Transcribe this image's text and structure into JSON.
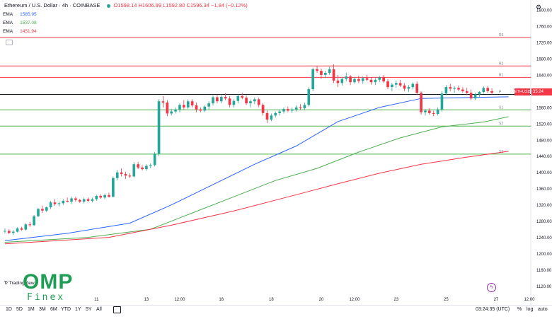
{
  "header": {
    "symbol": "Ethereum / U.S. Dollar · 4h · COINBASE",
    "ohlc": "O1598.14 H1606.99 L1592.80 C1596.34 −1.84 (−0.12%)"
  },
  "ema_legend": [
    {
      "label": "EMA",
      "value": "1585.95",
      "color": "#2962ff"
    },
    {
      "label": "EMA",
      "value": "1537.08",
      "color": "#4caf50"
    },
    {
      "label": "EMA",
      "value": "1451.94",
      "color": "#f23645"
    }
  ],
  "timeframes": [
    "1D",
    "5D",
    "1M",
    "3M",
    "6M",
    "YTD",
    "1Y",
    "5Y",
    "All"
  ],
  "status": {
    "time": "03:24:35 (UTC)",
    "percent": "%",
    "log": "log",
    "auto": "auto"
  },
  "logo": {
    "omp": "OMP",
    "finex": "Finex"
  },
  "tradingview": "TradingView",
  "last_price": {
    "symbol": "ETHUSD",
    "value": "35:24"
  },
  "chart_data": {
    "type": "candlestick",
    "title": "Ethereum / U.S. Dollar · 4h · COINBASE",
    "ylim": [
      1100,
      1800
    ],
    "y_ticks": [
      1800,
      1760,
      1720,
      1680,
      1640,
      1600,
      1560,
      1520,
      1480,
      1440,
      1400,
      1360,
      1320,
      1280,
      1240,
      1200,
      1160,
      1120
    ],
    "x_ticks": [
      {
        "label": "11",
        "bar": 22
      },
      {
        "label": "13",
        "bar": 34
      },
      {
        "label": "12:00",
        "bar": 42
      },
      {
        "label": "16",
        "bar": 52
      },
      {
        "label": "18",
        "bar": 64
      },
      {
        "label": "20",
        "bar": 76
      },
      {
        "label": "12:00",
        "bar": 84
      },
      {
        "label": "23",
        "bar": 94
      },
      {
        "label": "25",
        "bar": 106
      },
      {
        "label": "27",
        "bar": 118
      },
      {
        "label": "12:00",
        "bar": 126
      }
    ],
    "horizontal_levels": [
      {
        "label": "R3",
        "price": 1732,
        "color": "#f23645"
      },
      {
        "label": "R2",
        "price": 1662,
        "color": "#f23645"
      },
      {
        "label": "R1",
        "price": 1634,
        "color": "#f23645"
      },
      {
        "label": "P",
        "price": 1592,
        "color": "#131722"
      },
      {
        "label": "S1",
        "price": 1554,
        "color": "#4caf50"
      },
      {
        "label": "S2",
        "price": 1514,
        "color": "#4caf50"
      },
      {
        "label": "S3",
        "price": 1445,
        "color": "#4caf50"
      }
    ],
    "candles": [
      [
        1255,
        1262,
        1250,
        1256
      ],
      [
        1256,
        1260,
        1248,
        1251
      ],
      [
        1251,
        1258,
        1246,
        1254
      ],
      [
        1254,
        1265,
        1252,
        1262
      ],
      [
        1262,
        1266,
        1256,
        1259
      ],
      [
        1259,
        1275,
        1257,
        1272
      ],
      [
        1272,
        1278,
        1266,
        1270
      ],
      [
        1270,
        1295,
        1268,
        1292
      ],
      [
        1292,
        1312,
        1290,
        1310
      ],
      [
        1310,
        1318,
        1300,
        1306
      ],
      [
        1306,
        1316,
        1302,
        1314
      ],
      [
        1314,
        1330,
        1310,
        1326
      ],
      [
        1326,
        1334,
        1318,
        1322
      ],
      [
        1322,
        1328,
        1316,
        1324
      ],
      [
        1324,
        1334,
        1320,
        1330
      ],
      [
        1330,
        1338,
        1326,
        1328
      ],
      [
        1328,
        1340,
        1322,
        1336
      ],
      [
        1336,
        1340,
        1328,
        1332
      ],
      [
        1332,
        1335,
        1325,
        1328
      ],
      [
        1328,
        1338,
        1324,
        1334
      ],
      [
        1334,
        1338,
        1328,
        1330
      ],
      [
        1330,
        1338,
        1326,
        1334
      ],
      [
        1334,
        1345,
        1330,
        1342
      ],
      [
        1342,
        1346,
        1335,
        1338
      ],
      [
        1338,
        1348,
        1334,
        1344
      ],
      [
        1344,
        1350,
        1338,
        1340
      ],
      [
        1340,
        1390,
        1338,
        1386
      ],
      [
        1386,
        1406,
        1380,
        1400
      ],
      [
        1400,
        1410,
        1390,
        1396
      ],
      [
        1396,
        1402,
        1384,
        1392
      ],
      [
        1392,
        1398,
        1386,
        1390
      ],
      [
        1390,
        1425,
        1388,
        1420
      ],
      [
        1420,
        1426,
        1408,
        1412
      ],
      [
        1412,
        1418,
        1405,
        1408
      ],
      [
        1408,
        1420,
        1404,
        1416
      ],
      [
        1416,
        1422,
        1410,
        1418
      ],
      [
        1418,
        1450,
        1415,
        1446
      ],
      [
        1446,
        1580,
        1440,
        1575
      ],
      [
        1575,
        1588,
        1560,
        1572
      ],
      [
        1572,
        1578,
        1538,
        1545
      ],
      [
        1545,
        1556,
        1540,
        1550
      ],
      [
        1550,
        1560,
        1545,
        1555
      ],
      [
        1555,
        1570,
        1548,
        1566
      ],
      [
        1566,
        1578,
        1555,
        1560
      ],
      [
        1560,
        1580,
        1556,
        1575
      ],
      [
        1575,
        1580,
        1560,
        1565
      ],
      [
        1565,
        1572,
        1548,
        1555
      ],
      [
        1555,
        1560,
        1548,
        1552
      ],
      [
        1552,
        1565,
        1548,
        1562
      ],
      [
        1562,
        1575,
        1555,
        1570
      ],
      [
        1570,
        1590,
        1565,
        1585
      ],
      [
        1585,
        1592,
        1570,
        1575
      ],
      [
        1575,
        1590,
        1570,
        1586
      ],
      [
        1586,
        1595,
        1578,
        1582
      ],
      [
        1582,
        1588,
        1560,
        1566
      ],
      [
        1566,
        1580,
        1560,
        1576
      ],
      [
        1576,
        1592,
        1570,
        1588
      ],
      [
        1588,
        1596,
        1580,
        1584
      ],
      [
        1584,
        1590,
        1566,
        1570
      ],
      [
        1570,
        1580,
        1560,
        1575
      ],
      [
        1575,
        1585,
        1568,
        1580
      ],
      [
        1580,
        1584,
        1560,
        1566
      ],
      [
        1566,
        1570,
        1540,
        1546
      ],
      [
        1546,
        1552,
        1522,
        1530
      ],
      [
        1530,
        1545,
        1526,
        1540
      ],
      [
        1540,
        1550,
        1535,
        1546
      ],
      [
        1546,
        1555,
        1540,
        1550
      ],
      [
        1550,
        1560,
        1545,
        1556
      ],
      [
        1556,
        1562,
        1548,
        1552
      ],
      [
        1552,
        1560,
        1546,
        1555
      ],
      [
        1555,
        1565,
        1550,
        1560
      ],
      [
        1560,
        1568,
        1554,
        1558
      ],
      [
        1558,
        1572,
        1554,
        1566
      ],
      [
        1566,
        1610,
        1562,
        1605
      ],
      [
        1605,
        1658,
        1600,
        1654
      ],
      [
        1654,
        1662,
        1645,
        1650
      ],
      [
        1650,
        1656,
        1630,
        1640
      ],
      [
        1640,
        1650,
        1632,
        1645
      ],
      [
        1645,
        1660,
        1640,
        1654
      ],
      [
        1654,
        1666,
        1620,
        1626
      ],
      [
        1626,
        1640,
        1610,
        1620
      ],
      [
        1620,
        1634,
        1614,
        1630
      ],
      [
        1630,
        1645,
        1624,
        1636
      ],
      [
        1636,
        1640,
        1615,
        1622
      ],
      [
        1622,
        1635,
        1618,
        1630
      ],
      [
        1630,
        1638,
        1620,
        1625
      ],
      [
        1625,
        1636,
        1618,
        1632
      ],
      [
        1632,
        1640,
        1624,
        1628
      ],
      [
        1628,
        1634,
        1616,
        1622
      ],
      [
        1622,
        1632,
        1615,
        1628
      ],
      [
        1628,
        1638,
        1622,
        1634
      ],
      [
        1634,
        1640,
        1620,
        1624
      ],
      [
        1624,
        1630,
        1605,
        1610
      ],
      [
        1610,
        1620,
        1600,
        1616
      ],
      [
        1616,
        1626,
        1608,
        1620
      ],
      [
        1620,
        1628,
        1610,
        1614
      ],
      [
        1614,
        1620,
        1600,
        1606
      ],
      [
        1606,
        1615,
        1598,
        1610
      ],
      [
        1610,
        1622,
        1604,
        1618
      ],
      [
        1618,
        1624,
        1590,
        1596
      ],
      [
        1596,
        1600,
        1542,
        1548
      ],
      [
        1548,
        1556,
        1540,
        1552
      ],
      [
        1552,
        1558,
        1542,
        1546
      ],
      [
        1546,
        1552,
        1538,
        1544
      ],
      [
        1544,
        1560,
        1540,
        1555
      ],
      [
        1555,
        1600,
        1550,
        1594
      ],
      [
        1594,
        1615,
        1590,
        1610
      ],
      [
        1610,
        1618,
        1600,
        1606
      ],
      [
        1606,
        1612,
        1596,
        1608
      ],
      [
        1608,
        1614,
        1600,
        1604
      ],
      [
        1604,
        1610,
        1596,
        1600
      ],
      [
        1600,
        1608,
        1590,
        1596
      ],
      [
        1596,
        1604,
        1578,
        1582
      ],
      [
        1582,
        1596,
        1578,
        1592
      ],
      [
        1592,
        1600,
        1586,
        1598
      ],
      [
        1598,
        1612,
        1594,
        1608
      ],
      [
        1608,
        1612,
        1596,
        1600
      ],
      [
        1600,
        1607,
        1592,
        1596
      ]
    ],
    "ema_series": [
      {
        "name": "EMA",
        "color": "#2962ff",
        "points": [
          [
            0,
            1232
          ],
          [
            15,
            1250
          ],
          [
            30,
            1275
          ],
          [
            40,
            1320
          ],
          [
            50,
            1370
          ],
          [
            60,
            1420
          ],
          [
            70,
            1465
          ],
          [
            80,
            1525
          ],
          [
            90,
            1560
          ],
          [
            100,
            1582
          ],
          [
            110,
            1584
          ],
          [
            121,
            1586
          ]
        ]
      },
      {
        "name": "EMA",
        "color": "#4caf50",
        "points": [
          [
            0,
            1228
          ],
          [
            20,
            1240
          ],
          [
            35,
            1260
          ],
          [
            45,
            1300
          ],
          [
            55,
            1340
          ],
          [
            65,
            1380
          ],
          [
            75,
            1410
          ],
          [
            85,
            1450
          ],
          [
            95,
            1485
          ],
          [
            105,
            1512
          ],
          [
            115,
            1524
          ],
          [
            121,
            1537
          ]
        ]
      },
      {
        "name": "EMA",
        "color": "#f23645",
        "points": [
          [
            0,
            1224
          ],
          [
            25,
            1240
          ],
          [
            40,
            1270
          ],
          [
            55,
            1305
          ],
          [
            70,
            1345
          ],
          [
            80,
            1372
          ],
          [
            90,
            1398
          ],
          [
            100,
            1420
          ],
          [
            110,
            1436
          ],
          [
            121,
            1452
          ]
        ]
      }
    ]
  }
}
